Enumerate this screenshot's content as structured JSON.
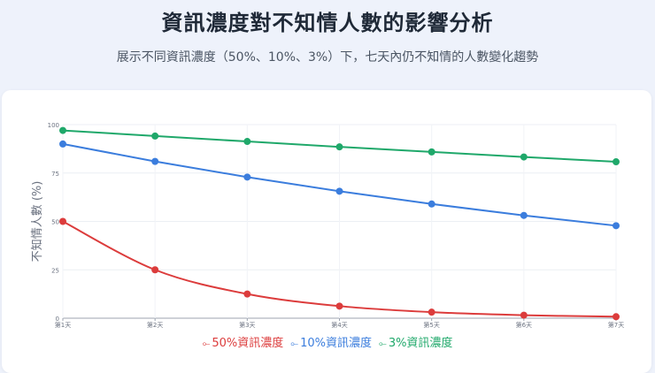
{
  "header": {
    "title": "資訊濃度對不知情人數的影響分析",
    "subtitle": "展示不同資訊濃度（50%、10%、3%）下，七天內仍不知情的人數變化趨勢"
  },
  "chart_data": {
    "type": "line",
    "title": "資訊濃度對不知情人數的影響分析",
    "subtitle": "展示不同資訊濃度（50%、10%、3%）下，七天內仍不知情的人數變化趨勢",
    "xlabel": "",
    "ylabel": "不知情人數 (%)",
    "categories": [
      "第1天",
      "第2天",
      "第3天",
      "第4天",
      "第5天",
      "第6天",
      "第7天"
    ],
    "ylim": [
      0,
      100
    ],
    "yticks": [
      0,
      25,
      50,
      75,
      100
    ],
    "grid": true,
    "legend_position": "bottom",
    "series": [
      {
        "name": "50%資訊濃度",
        "color": "#dc3c3c",
        "values": [
          50,
          25,
          12.5,
          6.25,
          3.125,
          1.5625,
          0.78
        ]
      },
      {
        "name": "10%資訊濃度",
        "color": "#3b7ddd",
        "values": [
          90,
          81,
          72.9,
          65.6,
          59,
          53.1,
          47.8
        ]
      },
      {
        "name": "3%資訊濃度",
        "color": "#1fa86a",
        "values": [
          97,
          94.1,
          91.3,
          88.5,
          85.9,
          83.3,
          80.8
        ]
      }
    ]
  }
}
